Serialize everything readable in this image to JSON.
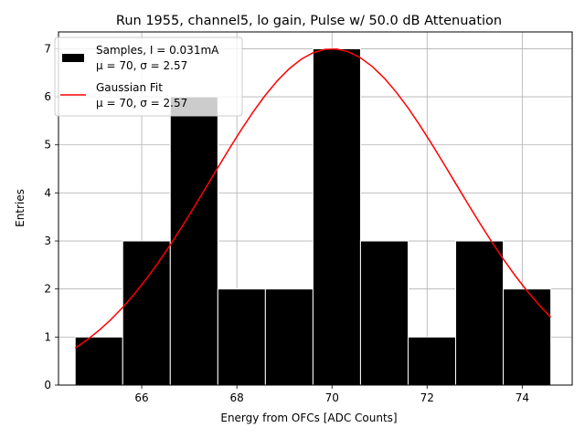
{
  "chart_data": {
    "type": "bar",
    "title": "Run 1955, channel5, lo gain, Pulse w/ 50.0 dB Attenuation",
    "xlabel": "Energy from OFCs [ADC Counts]",
    "ylabel": "Entries",
    "xlim": [
      64.25,
      75.05
    ],
    "ylim": [
      0,
      7.35
    ],
    "xticks": [
      66,
      68,
      70,
      72,
      74
    ],
    "yticks": [
      0,
      1,
      2,
      3,
      4,
      5,
      6,
      7
    ],
    "grid": true,
    "legend_position": "upper-left",
    "histogram": {
      "name": "Samples, I = 0.031mA",
      "stats": "μ = 70, σ = 2.57",
      "bin_edges": [
        64.6,
        65.6,
        66.6,
        67.6,
        68.6,
        69.6,
        70.6,
        71.6,
        72.6,
        73.6,
        74.6
      ],
      "counts": [
        1,
        3,
        6,
        2,
        2,
        7,
        3,
        1,
        3,
        2
      ],
      "color": "#000000"
    },
    "fit": {
      "name": "Gaussian Fit",
      "stats": "μ = 70, σ = 2.57",
      "mu": 70.0,
      "sigma": 2.57,
      "amplitude": 7.0,
      "x_range": [
        64.6,
        74.6
      ],
      "color": "#ff0000"
    }
  }
}
